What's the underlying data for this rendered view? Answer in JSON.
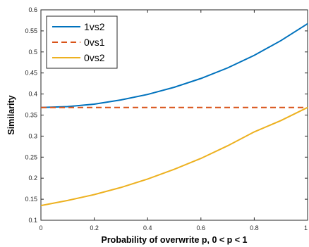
{
  "chart_data": {
    "type": "line",
    "title": "",
    "xlabel": "Probability of overwrite p, 0 < p < 1",
    "ylabel": "Similarity",
    "xlim": [
      0,
      1
    ],
    "ylim": [
      0.1,
      0.6
    ],
    "x_ticks": [
      0,
      0.2,
      0.4,
      0.6,
      0.8,
      1
    ],
    "x_tick_labels": [
      "0",
      "0.2",
      "0.4",
      "0.6",
      "0.8",
      "1"
    ],
    "y_ticks": [
      0.1,
      0.15,
      0.2,
      0.25,
      0.3,
      0.35,
      0.4,
      0.45,
      0.5,
      0.55,
      0.6
    ],
    "y_tick_labels": [
      "0.1",
      "0.15",
      "0.2",
      "0.25",
      "0.3",
      "0.35",
      "0.4",
      "0.45",
      "0.5",
      "0.55",
      "0.6"
    ],
    "grid": false,
    "legend_position": "top-left",
    "x": [
      0,
      0.1,
      0.2,
      0.3,
      0.4,
      0.5,
      0.6,
      0.7,
      0.8,
      0.9,
      1.0
    ],
    "series": [
      {
        "name": "1vs2",
        "color": "#0072bd",
        "style": "solid",
        "values": [
          0.368,
          0.37,
          0.376,
          0.386,
          0.399,
          0.416,
          0.437,
          0.462,
          0.492,
          0.527,
          0.567
        ]
      },
      {
        "name": "0vs1",
        "color": "#d95319",
        "style": "dashed",
        "values": [
          0.368,
          0.368,
          0.368,
          0.368,
          0.368,
          0.368,
          0.368,
          0.368,
          0.368,
          0.368,
          0.368
        ]
      },
      {
        "name": "0vs2",
        "color": "#edb120",
        "style": "solid",
        "values": [
          0.135,
          0.147,
          0.161,
          0.178,
          0.198,
          0.221,
          0.247,
          0.277,
          0.31,
          0.337,
          0.368
        ]
      }
    ]
  }
}
